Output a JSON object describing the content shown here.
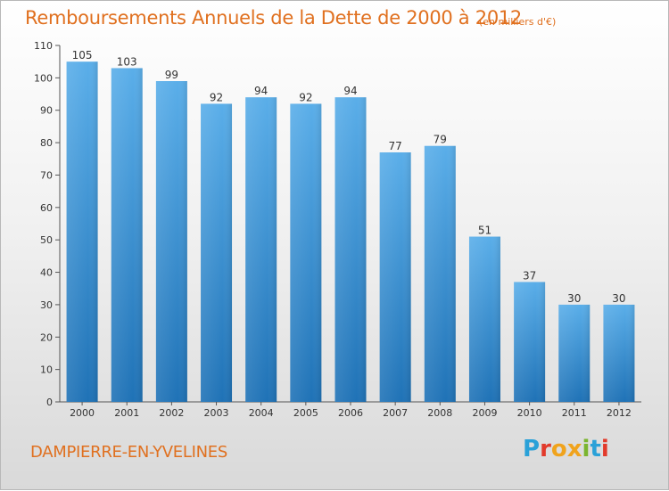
{
  "header": {
    "title": "Remboursements Annuels de la Dette de 2000 à 2012",
    "subtitle": "(en milliers d'€)"
  },
  "footer": {
    "city": "DAMPIERRE-EN-YVELINES",
    "logo_text": "Proxiti",
    "logo_colors": [
      "#2aa1d8",
      "#e23a2b",
      "#f0a31c",
      "#f0a31c",
      "#7ab52f",
      "#2aa1d8",
      "#e23a2b"
    ]
  },
  "colors": {
    "bar_top": "#5aaee9",
    "bar_bottom": "#1f72b6",
    "accent": "#e0701f"
  },
  "chart_data": {
    "type": "bar",
    "title": "Remboursements Annuels de la Dette de 2000 à 2012",
    "subtitle": "(en milliers d'€)",
    "categories": [
      "2000",
      "2001",
      "2002",
      "2003",
      "2004",
      "2005",
      "2006",
      "2007",
      "2008",
      "2009",
      "2010",
      "2011",
      "2012"
    ],
    "values": [
      105,
      103,
      99,
      92,
      94,
      92,
      94,
      77,
      79,
      51,
      37,
      30,
      30
    ],
    "xlabel": "",
    "ylabel": "",
    "ylim": [
      0,
      110
    ],
    "yticks": [
      0,
      10,
      20,
      30,
      40,
      50,
      60,
      70,
      80,
      90,
      100,
      110
    ],
    "grid": false,
    "data_labels": true
  }
}
